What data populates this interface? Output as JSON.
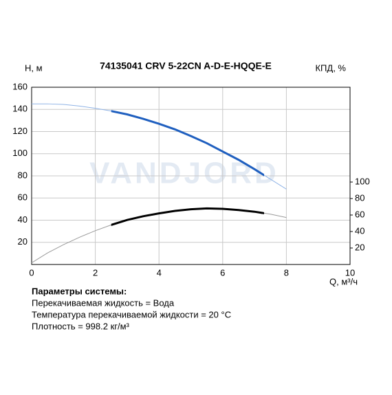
{
  "chart_data": {
    "type": "line",
    "title": "74135041 CRV 5-22CN A-D-E-HQQE-E",
    "y_label": "H, м",
    "y2_label": "КПД, %",
    "x_label": "Q, м³/ч",
    "watermark": "VANDJORD",
    "xlim": [
      0,
      10
    ],
    "xticks": [
      0,
      2,
      4,
      6,
      8,
      10
    ],
    "ylim": [
      0,
      160
    ],
    "yticks": [
      20,
      40,
      60,
      80,
      100,
      120,
      140,
      160
    ],
    "y2lim": [
      0,
      215
    ],
    "y2ticks": [
      20,
      40,
      60,
      80,
      100
    ],
    "grid": true,
    "highlight_x": [
      2.5,
      7.3
    ],
    "x": [
      0,
      0.5,
      1,
      1.5,
      2,
      2.5,
      3,
      3.5,
      4,
      4.5,
      5,
      5.5,
      6,
      6.5,
      7,
      7.5,
      8
    ],
    "series": [
      {
        "color": "#1f5fbf",
        "thin_color": "#8fb3e6",
        "values": [
          145,
          145,
          144.5,
          143,
          141,
          138.5,
          135.5,
          131.5,
          127,
          122,
          116,
          109.5,
          102,
          94.5,
          86,
          77,
          68
        ]
      },
      {
        "color": "#000000",
        "thin_color": "#999999",
        "axis": "y2",
        "values": [
          2,
          14,
          24,
          33,
          41,
          48,
          54,
          58.5,
          62,
          65,
          67,
          68,
          67.5,
          66,
          64,
          61,
          57
        ]
      }
    ],
    "notes": {
      "heading": "Параметры системы:",
      "lines": [
        "Перекачиваемая жидкость = Вода",
        "Температура перекачиваемой жидкости = 20 °C",
        "Плотность = 998.2 кг/м³"
      ]
    }
  }
}
